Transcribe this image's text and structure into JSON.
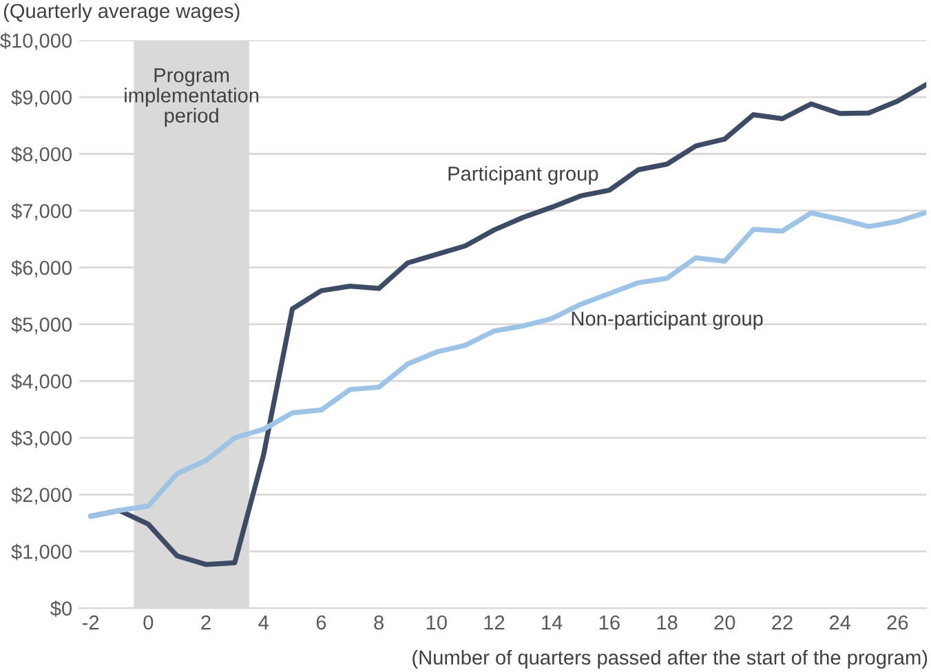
{
  "chart_data": {
    "type": "line",
    "ylabel": "(Quarterly average wages)",
    "xlabel": "(Number of quarters passed after the start of the program)",
    "x": [
      -2,
      -1,
      0,
      1,
      2,
      3,
      4,
      5,
      6,
      7,
      8,
      9,
      10,
      11,
      12,
      13,
      14,
      15,
      16,
      17,
      18,
      19,
      20,
      21,
      22,
      23,
      24,
      25,
      26,
      27
    ],
    "series": [
      {
        "name": "Participant group",
        "color": "#3d4b64",
        "values": [
          1620,
          1720,
          1480,
          920,
          770,
          800,
          2700,
          5270,
          5590,
          5670,
          5630,
          6080,
          6230,
          6380,
          6660,
          6880,
          7060,
          7260,
          7360,
          7720,
          7820,
          8140,
          8260,
          8690,
          8620,
          8880,
          8710,
          8720,
          8930,
          9220
        ]
      },
      {
        "name": "Non-participant group",
        "color": "#9dc3e6",
        "values": [
          1620,
          1720,
          1800,
          2370,
          2600,
          3000,
          3150,
          3440,
          3490,
          3850,
          3890,
          4300,
          4510,
          4630,
          4880,
          4970,
          5100,
          5350,
          5540,
          5730,
          5810,
          6170,
          6110,
          6670,
          6640,
          6960,
          6850,
          6720,
          6810,
          6970
        ]
      }
    ],
    "bands": [
      {
        "axis": "x",
        "from": -0.5,
        "to": 3.5,
        "label": "Program\nimplementation\nperiod",
        "color": "#d9d9d9"
      }
    ],
    "xlim": [
      -2.4,
      27
    ],
    "xticks": [
      -2,
      0,
      2,
      4,
      6,
      8,
      10,
      12,
      14,
      16,
      18,
      20,
      22,
      24,
      26
    ],
    "ylim": [
      0,
      10000
    ],
    "yticks": [
      {
        "value": 0,
        "label": "$0"
      },
      {
        "value": 1000,
        "label": "$1,000"
      },
      {
        "value": 2000,
        "label": "$2,000"
      },
      {
        "value": 3000,
        "label": "$3,000"
      },
      {
        "value": 4000,
        "label": "$4,000"
      },
      {
        "value": 5000,
        "label": "$5,000"
      },
      {
        "value": 6000,
        "label": "$6,000"
      },
      {
        "value": 7000,
        "label": "$7,000"
      },
      {
        "value": 8000,
        "label": "$8,000"
      },
      {
        "value": 9000,
        "label": "$9,000"
      },
      {
        "value": 10000,
        "label": "$10,000"
      }
    ],
    "grid": "y",
    "legend": false
  }
}
